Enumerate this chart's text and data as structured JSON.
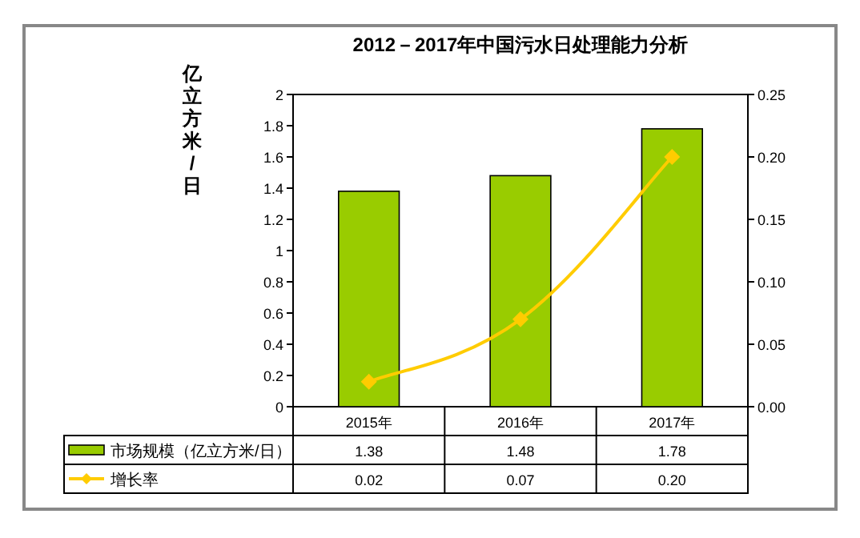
{
  "chart_data": {
    "type": "bar",
    "title": "2012－2017年中国污水日处理能力分析",
    "ylabel": "亿立方米/日",
    "categories": [
      "2015年",
      "2016年",
      "2017年"
    ],
    "series": [
      {
        "name": "市场规模（亿立方米/日）",
        "color": "#99cc00",
        "values": [
          1.38,
          1.48,
          1.78
        ],
        "value_labels": [
          "1.38",
          "1.48",
          "1.78"
        ]
      },
      {
        "name": "增长率",
        "type": "line",
        "axis": "y2",
        "color": "#ffcc00",
        "marker": "diamond",
        "values": [
          0.02,
          0.07,
          0.2
        ],
        "value_labels": [
          "0.02",
          "0.07",
          "0.20"
        ]
      }
    ],
    "ylim": [
      0,
      2
    ],
    "yticks": [
      0,
      0.2,
      0.4,
      0.6,
      0.8,
      1,
      1.2,
      1.4,
      1.6,
      1.8,
      2
    ],
    "y2lim": [
      0,
      0.25
    ],
    "y2ticks": [
      {
        "value": 0,
        "label": "0.00"
      },
      {
        "value": 0.05,
        "label": "0.05"
      },
      {
        "value": 0.1,
        "label": "0.10"
      },
      {
        "value": 0.15,
        "label": "0.15"
      },
      {
        "value": 0.2,
        "label": "0.20"
      },
      {
        "value": 0.25,
        "label": "0.25"
      }
    ],
    "grid": false,
    "legend": "bottom"
  }
}
